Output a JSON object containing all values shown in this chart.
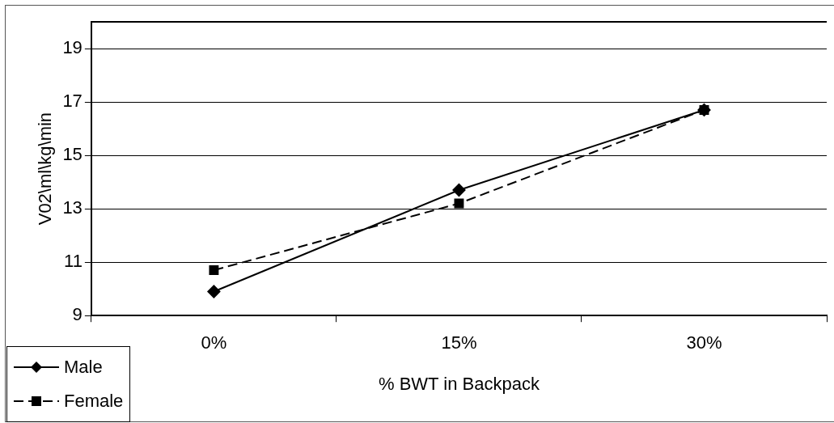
{
  "chart_data": {
    "type": "line",
    "xlabel": "% BWT in Backpack",
    "ylabel": "V02\\ml\\kg\\min",
    "categories": [
      "0%",
      "15%",
      "30%"
    ],
    "series": [
      {
        "name": "Male",
        "color": "#000000",
        "values": [
          9.9,
          13.7,
          16.7
        ],
        "marker": "diamond",
        "line_style": "solid"
      },
      {
        "name": "Female",
        "color": "#000000",
        "values": [
          10.7,
          13.2,
          16.7
        ],
        "marker": "square",
        "line_style": "dashed"
      }
    ],
    "ylim": [
      9,
      20
    ],
    "yticks": [
      9,
      11,
      13,
      15,
      17,
      19
    ],
    "grid": "y",
    "legend": "bottom left"
  }
}
